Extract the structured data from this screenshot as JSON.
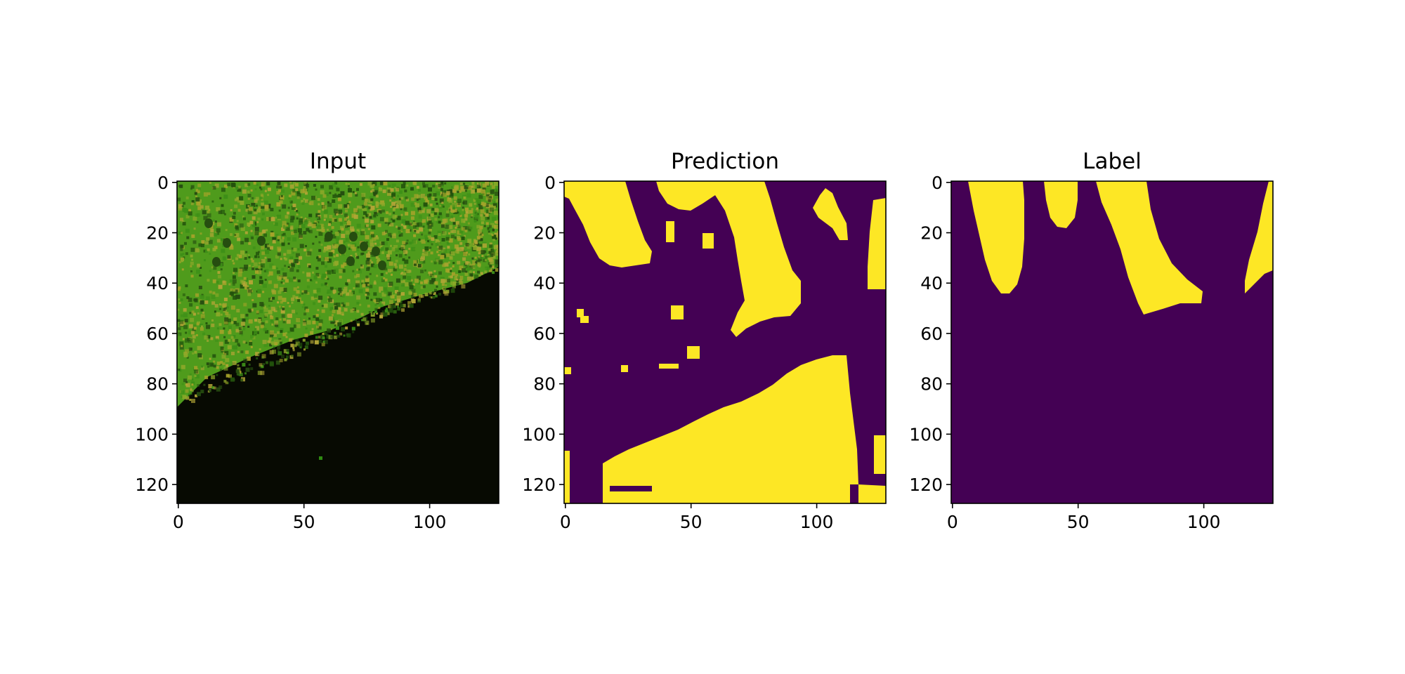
{
  "figure": {
    "background": "#ffffff"
  },
  "chart_data": [
    {
      "type": "heatmap",
      "title": "Input",
      "image_kind": "rgb-image",
      "image_size": [
        128,
        128
      ],
      "xlim": [
        0,
        127
      ],
      "ylim": [
        127,
        0
      ],
      "x_ticks": [
        0,
        50,
        100
      ],
      "y_ticks": [
        0,
        20,
        40,
        60,
        80,
        100,
        120
      ],
      "content": "green/yellow tissue texture in upper-left region; near-black background below a diagonal boundary from about (0, 90) to (127, 35); small green speck near (57, 110)",
      "colors": {
        "tissue_green": "#4ea61a",
        "tissue_yellow": "#a6a32a",
        "tissue_dark": "#264d10",
        "background": "#070a02"
      }
    },
    {
      "type": "heatmap",
      "title": "Prediction",
      "image_kind": "binary-mask",
      "image_size": [
        128,
        128
      ],
      "xlim": [
        0,
        127
      ],
      "ylim": [
        127,
        0
      ],
      "x_ticks": [
        0,
        50,
        100
      ],
      "y_ticks": [
        0,
        20,
        40,
        60,
        80,
        100,
        120
      ],
      "colors": {
        "0": "#440154",
        "1": "#fde725"
      }
    },
    {
      "type": "heatmap",
      "title": "Label",
      "image_kind": "binary-mask",
      "image_size": [
        128,
        128
      ],
      "xlim": [
        0,
        127
      ],
      "ylim": [
        127,
        0
      ],
      "x_ticks": [
        0,
        50,
        100
      ],
      "y_ticks": [
        0,
        20,
        40,
        60,
        80,
        100,
        120
      ],
      "colors": {
        "0": "#440154",
        "1": "#fde725"
      }
    }
  ]
}
